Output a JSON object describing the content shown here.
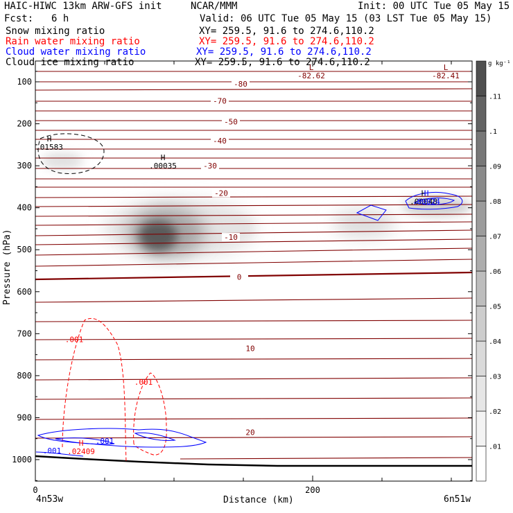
{
  "header": {
    "model": "HAIC-HIWC 13km ARW-GFS init",
    "center": "NCAR/MMM",
    "init": "Init: 00 UTC Tue 05 May 15",
    "fcst_label": "Fcst:",
    "fcst_value": "6 h",
    "valid": "Valid: 06 UTC Tue 05 May 15 (03 LST Tue 05 May 15)",
    "fields": [
      {
        "name": "Snow mixing ratio",
        "color": "#000000",
        "xy": "XY= 259.5, 91.6 to 274.6,110.2"
      },
      {
        "name": "Rain water mixing ratio",
        "color": "#ff0000",
        "xy": "XY= 259.5, 91.6 to 274.6,110.2"
      },
      {
        "name": "Cloud water mixing ratio",
        "color": "#0000ff",
        "xy": "XY= 259.5, 91.6 to 274.6,110.2"
      },
      {
        "name": "Cloud ice mixing ratio",
        "color": "#000000",
        "xy": "XY= 259.5, 91.6 to 274.6,110.2"
      }
    ]
  },
  "chart_data": {
    "type": "cross-section",
    "xlabel": "Distance (km)",
    "ylabel": "Pressure (hPa)",
    "xlim": [
      0,
      315
    ],
    "ylim": [
      1050,
      55
    ],
    "x_ticks": [
      "0",
      "200"
    ],
    "y_ticks": [
      "100",
      "200",
      "300",
      "400",
      "500",
      "600",
      "700",
      "800",
      "900",
      "1000"
    ],
    "left_endpoint": "4n53w",
    "right_endpoint": "6n51w",
    "colorbar": {
      "unit": "g kg⁻¹",
      "ticks": [
        ".01",
        ".02",
        ".03",
        ".04",
        ".05",
        ".06",
        ".07",
        ".08",
        ".09",
        ".1",
        ".11"
      ],
      "colors": [
        "#ffffff",
        "#f3f3f3",
        "#e6e6e6",
        "#dadada",
        "#cdcdcd",
        "#bdbdbd",
        "#adadad",
        "#9c9c9c",
        "#8a8a8a",
        "#777777",
        "#636363",
        "#4f4f4f"
      ]
    },
    "temperature_color": "#800000",
    "temperature_labels": [
      {
        "text": "-80",
        "x": 148,
        "p": 105
      },
      {
        "text": "-70",
        "x": 133,
        "p": 145
      },
      {
        "text": "-50",
        "x": 141,
        "p": 195
      },
      {
        "text": "-40",
        "x": 133,
        "p": 240
      },
      {
        "text": "-30",
        "x": 126,
        "p": 300
      },
      {
        "text": "-20",
        "x": 134,
        "p": 365
      },
      {
        "text": "-10",
        "x": 141,
        "p": 470
      },
      {
        "text": "0",
        "x": 147,
        "p": 565
      },
      {
        "text": "10",
        "x": 155,
        "p": 735
      },
      {
        "text": "20",
        "x": 155,
        "p": 935
      }
    ],
    "extrema": [
      {
        "mark": "H",
        "value": ".01583",
        "x": 10,
        "p": 255,
        "color": "#000000"
      },
      {
        "mark": "H",
        "value": ".00035",
        "x": 92,
        "p": 300,
        "color": "#000000"
      },
      {
        "mark": "L",
        "value": "-82.62",
        "x": 199,
        "p": 85,
        "color": "#800000"
      },
      {
        "mark": "L",
        "value": "-82.41",
        "x": 296,
        "p": 85,
        "color": "#800000"
      },
      {
        "mark": "H",
        "value": ".00048",
        "x": 280,
        "p": 385,
        "color": "#000000"
      },
      {
        "mark": "H",
        "value": ".00024",
        "x": 282,
        "p": 385,
        "color": "#0000ff"
      },
      {
        "mark": "H",
        "value": ".02409",
        "x": 33,
        "p": 980,
        "color": "#ff0000"
      }
    ],
    "contour_labels": [
      {
        "text": ".001",
        "x": 28,
        "p": 720,
        "color": "#ff0000"
      },
      {
        "text": ".001",
        "x": 78,
        "p": 822,
        "color": "#ff0000"
      },
      {
        "text": ".001",
        "x": 12,
        "p": 985,
        "color": "#0000ff"
      },
      {
        "text": ".001",
        "x": 50,
        "p": 962,
        "color": "#0000ff"
      }
    ]
  }
}
